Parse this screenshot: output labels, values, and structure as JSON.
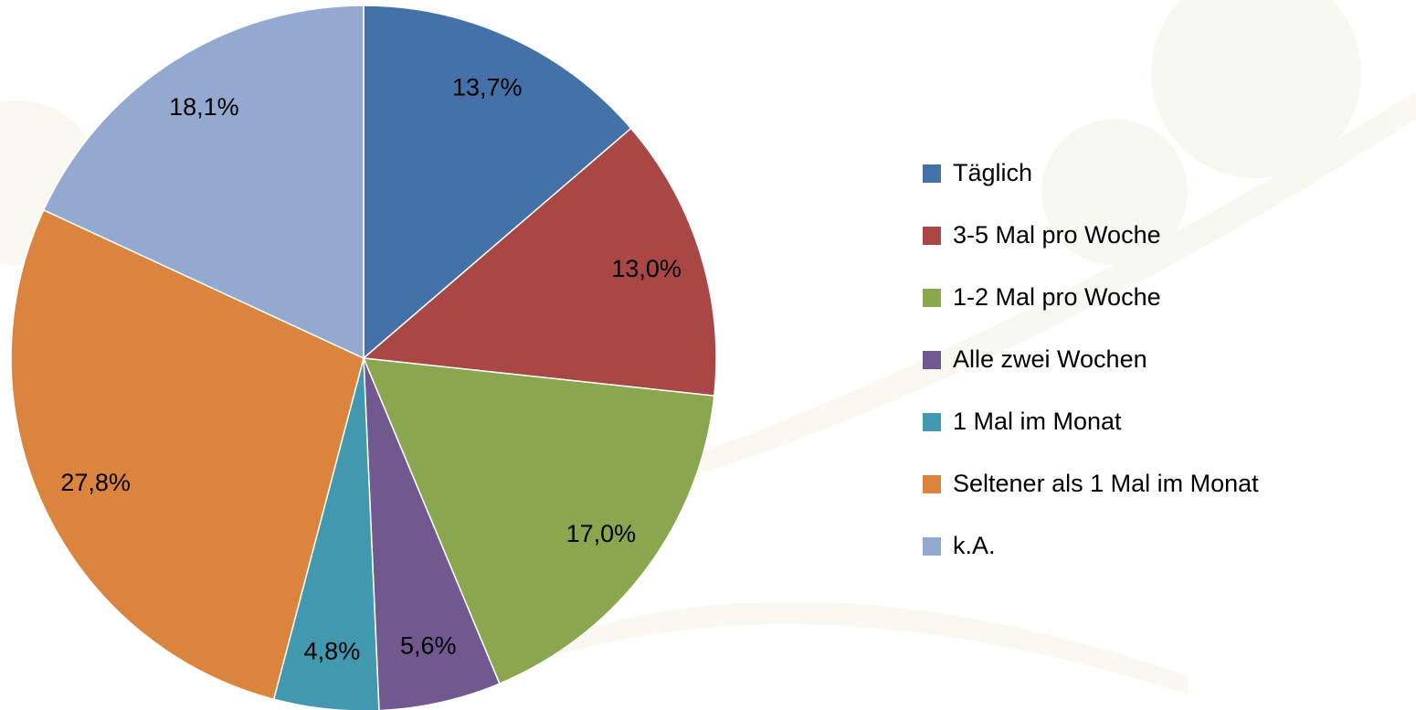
{
  "chart_data": {
    "type": "pie",
    "categories": [
      "Täglich",
      "3-5 Mal pro Woche",
      "1-2 Mal pro Woche",
      "Alle zwei Wochen",
      "1 Mal im Monat",
      "Seltener als 1 Mal im Monat",
      "k.A."
    ],
    "values": [
      13.7,
      13.0,
      17.0,
      5.6,
      4.8,
      27.8,
      18.1
    ],
    "value_labels": [
      "13,7%",
      "13,0%",
      "17,0%",
      "5,6%",
      "4,8%",
      "27,8%",
      "18,1%"
    ],
    "colors": [
      "#4472a8",
      "#a94745",
      "#8aa64e",
      "#71588f",
      "#4198af",
      "#db843d",
      "#93a9cf"
    ],
    "legend": "right"
  }
}
